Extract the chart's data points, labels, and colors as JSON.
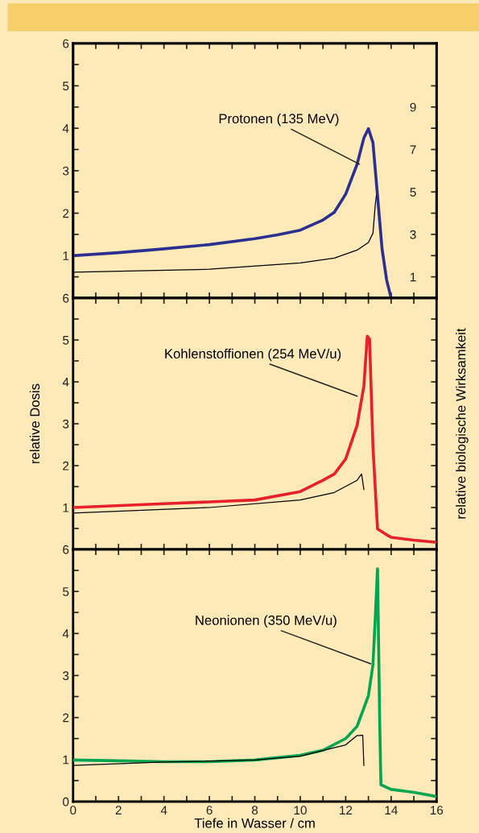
{
  "chart_data": [
    {
      "type": "line",
      "xlim": [
        0,
        16
      ],
      "xticks": [
        0,
        {
          "value": 1,
          "label": null
        },
        2,
        {
          "value": 3,
          "label": null
        },
        4,
        {
          "value": 5,
          "label": null
        },
        6,
        {
          "value": 7,
          "label": null
        },
        8,
        {
          "value": 9,
          "label": null
        },
        10,
        {
          "value": 11,
          "label": null
        },
        12,
        {
          "value": 13,
          "label": null
        },
        14,
        {
          "value": 15,
          "label": null
        },
        16
      ],
      "ylim": [
        0,
        6
      ],
      "yticks": [
        {
          "value": 0.5,
          "label": null
        },
        1,
        {
          "value": 1.5,
          "label": null
        },
        2,
        {
          "value": 2.5,
          "label": null
        },
        3,
        {
          "value": 3.5,
          "label": null
        },
        4,
        {
          "value": 4.5,
          "label": null
        },
        5,
        {
          "value": 5.5,
          "label": null
        },
        6
      ],
      "y2lim": [
        0,
        12
      ],
      "y2ticks": [
        1,
        {
          "value": 2,
          "label": null
        },
        3,
        {
          "value": 4,
          "label": null
        },
        5,
        {
          "value": 6,
          "label": null
        },
        7,
        {
          "value": 8,
          "label": null
        },
        9,
        {
          "value": 10,
          "label": null
        }
      ],
      "tick_labels": "y",
      "grid": false,
      "legend": false,
      "annotations": [
        {
          "text": "Protonen (135 MeV)",
          "x": 12.7,
          "y": 3.13
        }
      ],
      "series": [
        {
          "color": "#2b2f8f",
          "x": [
            0,
            2,
            4,
            6,
            8,
            9,
            10,
            11,
            11.5,
            12,
            12.5,
            12.8,
            13.0,
            13.2,
            13.4,
            13.6,
            13.8,
            14
          ],
          "values": [
            1.0,
            1.07,
            1.16,
            1.26,
            1.4,
            1.49,
            1.6,
            1.84,
            2.02,
            2.45,
            3.15,
            3.77,
            3.99,
            3.66,
            2.41,
            1.16,
            0.43,
            0
          ]
        },
        {
          "color": "#000000",
          "axis": "y2",
          "x": [
            0,
            6,
            10,
            11.5,
            12.5,
            13.0,
            13.2,
            13.3,
            13.35
          ],
          "values": [
            1.22,
            1.36,
            1.66,
            1.88,
            2.26,
            2.62,
            3.06,
            4.38,
            4.82
          ]
        }
      ]
    },
    {
      "type": "line",
      "xlim": [
        0,
        16
      ],
      "xticks": [
        0,
        {
          "value": 1,
          "label": null
        },
        2,
        {
          "value": 3,
          "label": null
        },
        4,
        {
          "value": 5,
          "label": null
        },
        6,
        {
          "value": 7,
          "label": null
        },
        8,
        {
          "value": 9,
          "label": null
        },
        10,
        {
          "value": 11,
          "label": null
        },
        12,
        {
          "value": 13,
          "label": null
        },
        14,
        {
          "value": 15,
          "label": null
        },
        16
      ],
      "ylim": [
        0,
        6
      ],
      "yticks": [
        {
          "value": 0.5,
          "label": null
        },
        1,
        {
          "value": 1.5,
          "label": null
        },
        2,
        {
          "value": 2.5,
          "label": null
        },
        3,
        {
          "value": 3.5,
          "label": null
        },
        4,
        {
          "value": 4.5,
          "label": null
        },
        5,
        {
          "value": 5.5,
          "label": null
        },
        6
      ],
      "tick_labels": "y",
      "grid": false,
      "legend": false,
      "ylabel": "relative Dosis",
      "y2label": "relative biologische Wirksamkeit",
      "annotations": [
        {
          "text": "Kohlenstoffionen (254 MeV/u)",
          "x": 12.6,
          "y": 3.64
        }
      ],
      "series": [
        {
          "color": "#e8202a",
          "x": [
            0,
            4,
            8,
            10,
            11,
            11.5,
            12,
            12.5,
            12.8,
            12.95,
            13.05,
            13.2,
            13.4,
            13.8,
            14,
            15,
            16
          ],
          "values": [
            1.0,
            1.09,
            1.18,
            1.38,
            1.65,
            1.8,
            2.16,
            2.96,
            3.9,
            5.09,
            5.02,
            2.45,
            0.49,
            0.35,
            0.29,
            0.22,
            0.17
          ]
        },
        {
          "color": "#000000",
          "x": [
            0,
            6,
            10,
            11.5,
            12.5,
            12.7,
            12.8
          ],
          "values": [
            0.87,
            1.0,
            1.18,
            1.36,
            1.65,
            1.8,
            1.43
          ]
        }
      ]
    },
    {
      "type": "line",
      "xlim": [
        0,
        16
      ],
      "xticks": [
        0,
        {
          "value": 1,
          "label": null
        },
        2,
        {
          "value": 3,
          "label": null
        },
        4,
        {
          "value": 5,
          "label": null
        },
        6,
        {
          "value": 7,
          "label": null
        },
        8,
        {
          "value": 9,
          "label": null
        },
        10,
        {
          "value": 11,
          "label": null
        },
        12,
        {
          "value": 13,
          "label": null
        },
        14,
        {
          "value": 15,
          "label": null
        },
        16
      ],
      "ylim": [
        0,
        6
      ],
      "yticks": [
        0,
        {
          "value": 0.5,
          "label": null
        },
        1,
        {
          "value": 1.5,
          "label": null
        },
        2,
        {
          "value": 2.5,
          "label": null
        },
        3,
        {
          "value": 3.5,
          "label": null
        },
        4,
        {
          "value": 4.5,
          "label": null
        },
        5,
        {
          "value": 5.5,
          "label": null
        },
        6
      ],
      "grid": false,
      "legend": false,
      "xlabel": "Tiefe in Wasser / cm",
      "annotations": [
        {
          "text": "Neonionen (350 MeV/u)",
          "x": 13.2,
          "y": 3.26
        }
      ],
      "series": [
        {
          "color": "#00a650",
          "x": [
            0,
            2,
            4,
            6,
            8,
            10,
            11,
            12,
            12.5,
            13,
            13.2,
            13.3,
            13.4,
            13.5,
            13.55,
            14,
            15,
            16
          ],
          "values": [
            0.99,
            0.97,
            0.95,
            0.95,
            0.99,
            1.1,
            1.22,
            1.5,
            1.79,
            2.52,
            3.26,
            4.35,
            5.54,
            1.79,
            0.4,
            0.29,
            0.22,
            0.12
          ]
        },
        {
          "color": "#000000",
          "x": [
            0,
            4,
            8,
            10,
            12,
            12.5,
            12.75,
            12.8
          ],
          "values": [
            0.86,
            0.94,
            0.99,
            1.08,
            1.35,
            1.57,
            1.58,
            0.86
          ]
        }
      ]
    }
  ]
}
